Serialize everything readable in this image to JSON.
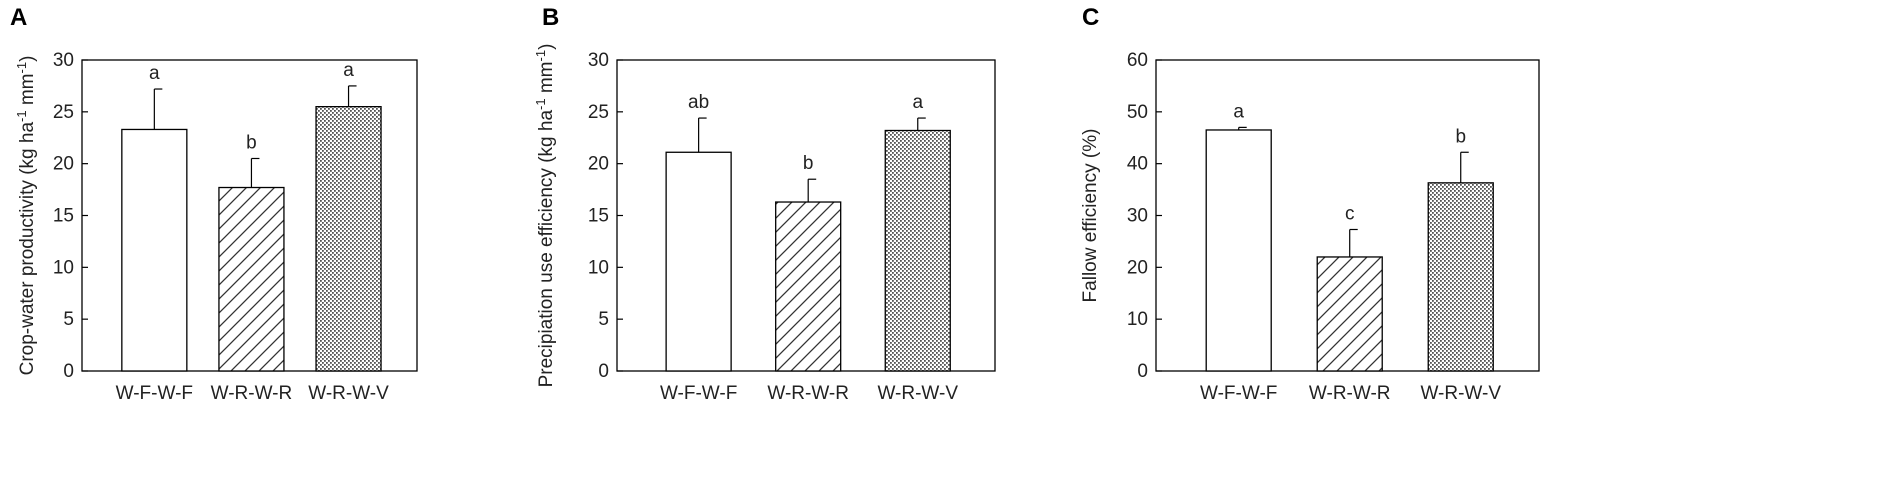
{
  "chart_data": [
    {
      "panel": "A",
      "type": "bar",
      "ylabel_parts": [
        {
          "text": "Crop-water productivity (kg ha",
          "sup": false
        },
        {
          "text": "-1",
          "sup": true
        },
        {
          "text": " mm",
          "sup": false
        },
        {
          "text": "-1",
          "sup": true
        },
        {
          "text": ")",
          "sup": false
        }
      ],
      "ylim": [
        0,
        30
      ],
      "yticks": [
        0,
        5,
        10,
        15,
        20,
        25,
        30
      ],
      "categories": [
        "W-F-W-F",
        "W-R-W-R",
        "W-R-W-V"
      ],
      "values": [
        23.3,
        17.7,
        25.5
      ],
      "errors": [
        3.9,
        2.8,
        2.0
      ],
      "letters": [
        "a",
        "b",
        "a"
      ],
      "patterns": [
        "none",
        "hatch",
        "dots"
      ]
    },
    {
      "panel": "B",
      "type": "bar",
      "ylabel_parts": [
        {
          "text": "Precipiation use efficiency (kg ha",
          "sup": false
        },
        {
          "text": "-1",
          "sup": true
        },
        {
          "text": " mm",
          "sup": false
        },
        {
          "text": "-1",
          "sup": true
        },
        {
          "text": ")",
          "sup": false
        }
      ],
      "ylim": [
        0,
        30
      ],
      "yticks": [
        0,
        5,
        10,
        15,
        20,
        25,
        30
      ],
      "categories": [
        "W-F-W-F",
        "W-R-W-R",
        "W-R-W-V"
      ],
      "values": [
        21.1,
        16.3,
        23.2
      ],
      "errors": [
        3.3,
        2.2,
        1.2
      ],
      "letters": [
        "ab",
        "b",
        "a"
      ],
      "patterns": [
        "none",
        "hatch",
        "dots"
      ]
    },
    {
      "panel": "C",
      "type": "bar",
      "ylabel_parts": [
        {
          "text": "Fallow efficiency (%)",
          "sup": false
        }
      ],
      "ylim": [
        0,
        60
      ],
      "yticks": [
        0,
        10,
        20,
        30,
        40,
        50,
        60
      ],
      "categories": [
        "W-F-W-F",
        "W-R-W-R",
        "W-R-W-V"
      ],
      "values": [
        46.5,
        22.0,
        36.3
      ],
      "errors": [
        0.5,
        5.3,
        5.9
      ],
      "letters": [
        "a",
        "c",
        "b"
      ],
      "patterns": [
        "none",
        "hatch",
        "dots"
      ]
    }
  ]
}
